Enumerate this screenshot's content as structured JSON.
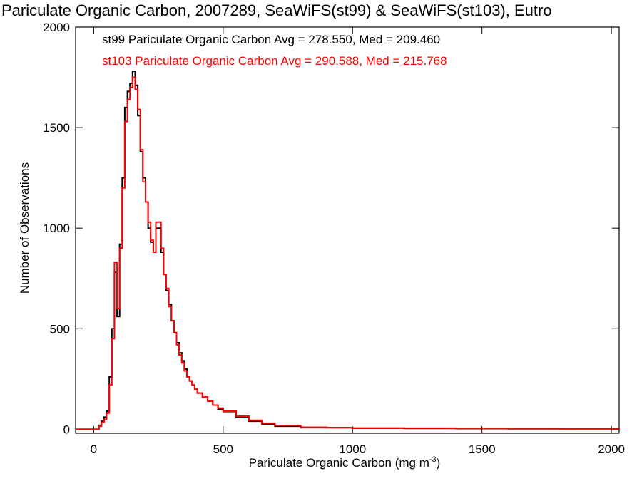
{
  "chart_data": {
    "type": "line",
    "title": "Pariculate Organic Carbon, 2007289, SeaWiFS(st99) & SeaWiFS(st103), Eutro",
    "xlabel_main": "Pariculate Organic Carbon (mg m",
    "xlabel_sup": "-3",
    "xlabel_close": ")",
    "ylabel": "Number of Observations",
    "xlim": [
      -70,
      2030
    ],
    "ylim": [
      -20,
      2000
    ],
    "xticks": [
      0,
      500,
      1000,
      1500,
      2000
    ],
    "xtick_labels": [
      "0",
      "500",
      "1000",
      "1500",
      "2000"
    ],
    "yticks": [
      0,
      500,
      1000,
      1500,
      2000
    ],
    "ytick_labels": [
      "0",
      "500",
      "1000",
      "1500",
      "2000"
    ],
    "grid": false,
    "annotations": [
      {
        "text": "st99 Pariculate Organic Carbon Avg = 278.550, Med = 209.460",
        "color": "#000000"
      },
      {
        "text": "st103 Pariculate Organic Carbon Avg = 290.588, Med = 215.768",
        "color": "#ff0000"
      }
    ],
    "x": [
      -70,
      10,
      20,
      30,
      40,
      50,
      60,
      70,
      80,
      90,
      100,
      110,
      120,
      130,
      140,
      150,
      160,
      170,
      180,
      190,
      200,
      210,
      220,
      230,
      240,
      250,
      260,
      270,
      280,
      290,
      300,
      310,
      320,
      330,
      340,
      350,
      360,
      370,
      380,
      390,
      400,
      420,
      440,
      460,
      480,
      500,
      550,
      600,
      650,
      700,
      800,
      900,
      1000,
      1200,
      1400,
      1600,
      1800,
      2030
    ],
    "series": [
      {
        "name": "st99",
        "color": "#000000",
        "values": [
          0,
          0,
          20,
          40,
          60,
          90,
          260,
          500,
          780,
          560,
          920,
          1250,
          1600,
          1680,
          1720,
          1780,
          1710,
          1560,
          1380,
          1250,
          1130,
          1000,
          930,
          880,
          1000,
          1000,
          880,
          770,
          690,
          620,
          540,
          480,
          430,
          380,
          340,
          300,
          260,
          240,
          220,
          200,
          180,
          160,
          140,
          120,
          100,
          88,
          60,
          40,
          25,
          15,
          8,
          8,
          5,
          4,
          3,
          2,
          2,
          1
        ]
      },
      {
        "name": "st103",
        "color": "#ff0000",
        "values": [
          0,
          0,
          15,
          35,
          50,
          80,
          220,
          450,
          830,
          600,
          900,
          1200,
          1530,
          1640,
          1700,
          1750,
          1690,
          1590,
          1390,
          1230,
          1130,
          1030,
          940,
          880,
          1030,
          1030,
          900,
          770,
          700,
          610,
          540,
          480,
          420,
          370,
          330,
          290,
          260,
          240,
          220,
          200,
          180,
          160,
          140,
          120,
          105,
          90,
          65,
          45,
          30,
          18,
          10,
          8,
          6,
          5,
          4,
          3,
          2,
          1
        ]
      }
    ]
  }
}
